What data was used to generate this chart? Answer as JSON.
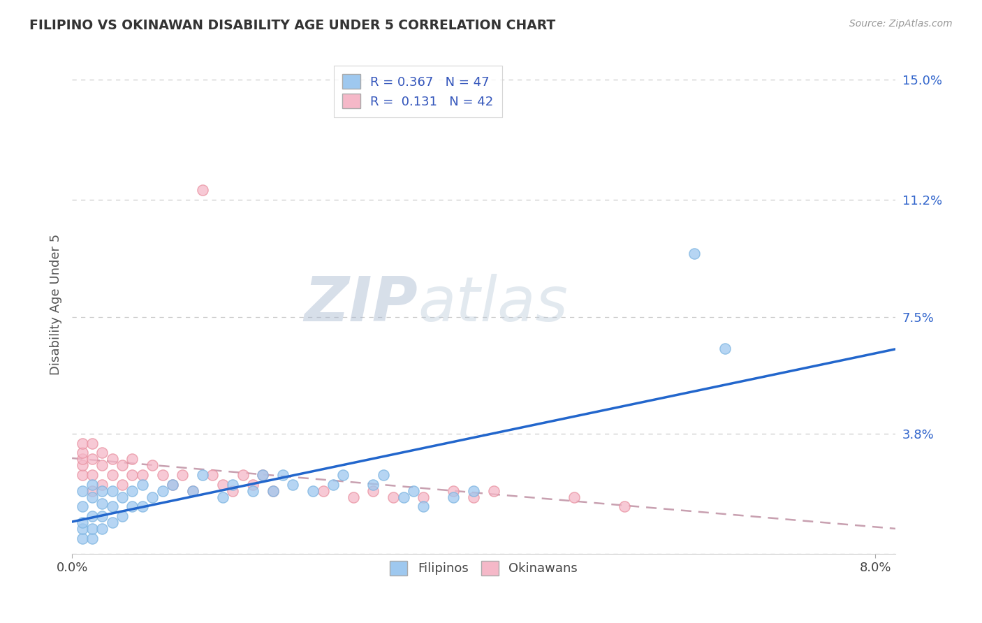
{
  "title": "FILIPINO VS OKINAWAN DISABILITY AGE UNDER 5 CORRELATION CHART",
  "source": "Source: ZipAtlas.com",
  "xlim": [
    0.0,
    0.082
  ],
  "ylim": [
    0.0,
    0.158
  ],
  "xtick_vals": [
    0.0,
    0.08
  ],
  "xtick_labels": [
    "0.0%",
    "8.0%"
  ],
  "ytick_vals": [
    0.0,
    0.038,
    0.075,
    0.112,
    0.15
  ],
  "ytick_labels": [
    "",
    "3.8%",
    "7.5%",
    "11.2%",
    "15.0%"
  ],
  "filipino_color": "#9ec8ef",
  "filipino_edge": "#7ab3e0",
  "okinawan_color": "#f5b8c8",
  "okinawan_edge": "#e8909f",
  "filipino_line_color": "#2266cc",
  "okinawan_line_color": "#e06080",
  "okinawan_dash_color": "#c8a0b0",
  "R_filipino": 0.367,
  "N_filipino": 47,
  "R_okinawan": 0.131,
  "N_okinawan": 42,
  "watermark": "ZIPatlas",
  "watermark_color": "#c8d8ee",
  "filipino_points_x": [
    0.001,
    0.001,
    0.001,
    0.001,
    0.001,
    0.002,
    0.002,
    0.002,
    0.002,
    0.002,
    0.003,
    0.003,
    0.003,
    0.003,
    0.004,
    0.004,
    0.004,
    0.005,
    0.005,
    0.006,
    0.006,
    0.007,
    0.007,
    0.008,
    0.009,
    0.01,
    0.012,
    0.013,
    0.015,
    0.016,
    0.018,
    0.019,
    0.02,
    0.021,
    0.022,
    0.024,
    0.026,
    0.027,
    0.03,
    0.031,
    0.033,
    0.034,
    0.035,
    0.038,
    0.04,
    0.062,
    0.065
  ],
  "filipino_points_y": [
    0.005,
    0.008,
    0.01,
    0.015,
    0.02,
    0.005,
    0.008,
    0.012,
    0.018,
    0.022,
    0.008,
    0.012,
    0.016,
    0.02,
    0.01,
    0.015,
    0.02,
    0.012,
    0.018,
    0.015,
    0.02,
    0.015,
    0.022,
    0.018,
    0.02,
    0.022,
    0.02,
    0.025,
    0.018,
    0.022,
    0.02,
    0.025,
    0.02,
    0.025,
    0.022,
    0.02,
    0.022,
    0.025,
    0.022,
    0.025,
    0.018,
    0.02,
    0.015,
    0.018,
    0.02,
    0.095,
    0.065
  ],
  "okinawan_points_x": [
    0.001,
    0.001,
    0.001,
    0.001,
    0.001,
    0.002,
    0.002,
    0.002,
    0.002,
    0.003,
    0.003,
    0.003,
    0.004,
    0.004,
    0.005,
    0.005,
    0.006,
    0.006,
    0.007,
    0.008,
    0.009,
    0.01,
    0.011,
    0.012,
    0.013,
    0.014,
    0.015,
    0.016,
    0.017,
    0.018,
    0.019,
    0.02,
    0.025,
    0.028,
    0.03,
    0.032,
    0.035,
    0.038,
    0.04,
    0.042,
    0.05,
    0.055
  ],
  "okinawan_points_y": [
    0.025,
    0.028,
    0.03,
    0.032,
    0.035,
    0.02,
    0.025,
    0.03,
    0.035,
    0.022,
    0.028,
    0.032,
    0.025,
    0.03,
    0.022,
    0.028,
    0.025,
    0.03,
    0.025,
    0.028,
    0.025,
    0.022,
    0.025,
    0.02,
    0.115,
    0.025,
    0.022,
    0.02,
    0.025,
    0.022,
    0.025,
    0.02,
    0.02,
    0.018,
    0.02,
    0.018,
    0.018,
    0.02,
    0.018,
    0.02,
    0.018,
    0.015
  ]
}
